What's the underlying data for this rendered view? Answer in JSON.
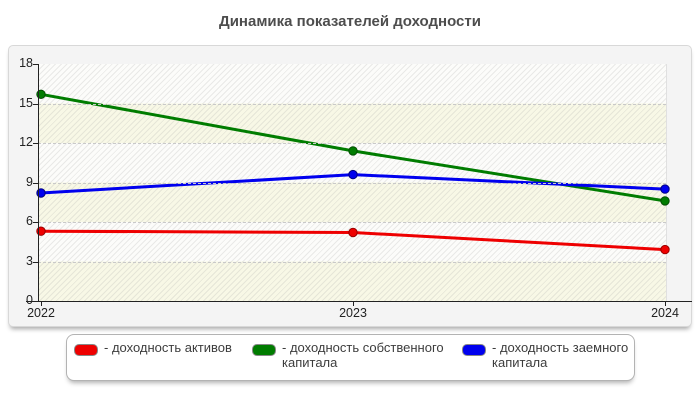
{
  "title": "Динамика показателей доходности",
  "chart_data": {
    "type": "line",
    "x": [
      2022,
      2023,
      2024
    ],
    "x_tick_labels": [
      "2022",
      "2023",
      "2024"
    ],
    "y_ticks": [
      0,
      3,
      6,
      9,
      12,
      15,
      18
    ],
    "grid_values": [
      3,
      6,
      9,
      12,
      15
    ],
    "ylim": [
      0,
      18
    ],
    "grid": "horizontal dashed",
    "legend_position": "bottom",
    "series": [
      {
        "name": "доходность активов",
        "color": "#ee0000",
        "marker_border": "#990000",
        "values": [
          5.3,
          5.2,
          3.9
        ]
      },
      {
        "name": "доходность собственного капитала",
        "color": "#007c00",
        "marker_border": "#004b00",
        "values": [
          15.7,
          11.4,
          7.6
        ]
      },
      {
        "name": "доходность заемного капитала",
        "color": "#0000ee",
        "marker_border": "#000080",
        "values": [
          8.2,
          9.6,
          8.5
        ]
      }
    ]
  },
  "legend": {
    "items": [
      {
        "label": "- доходность активов",
        "color": "#ee0000"
      },
      {
        "label": "- доходность собственного капитала",
        "color": "#007c00"
      },
      {
        "label": "- доходность заемного капитала",
        "color": "#0000ee"
      }
    ]
  }
}
